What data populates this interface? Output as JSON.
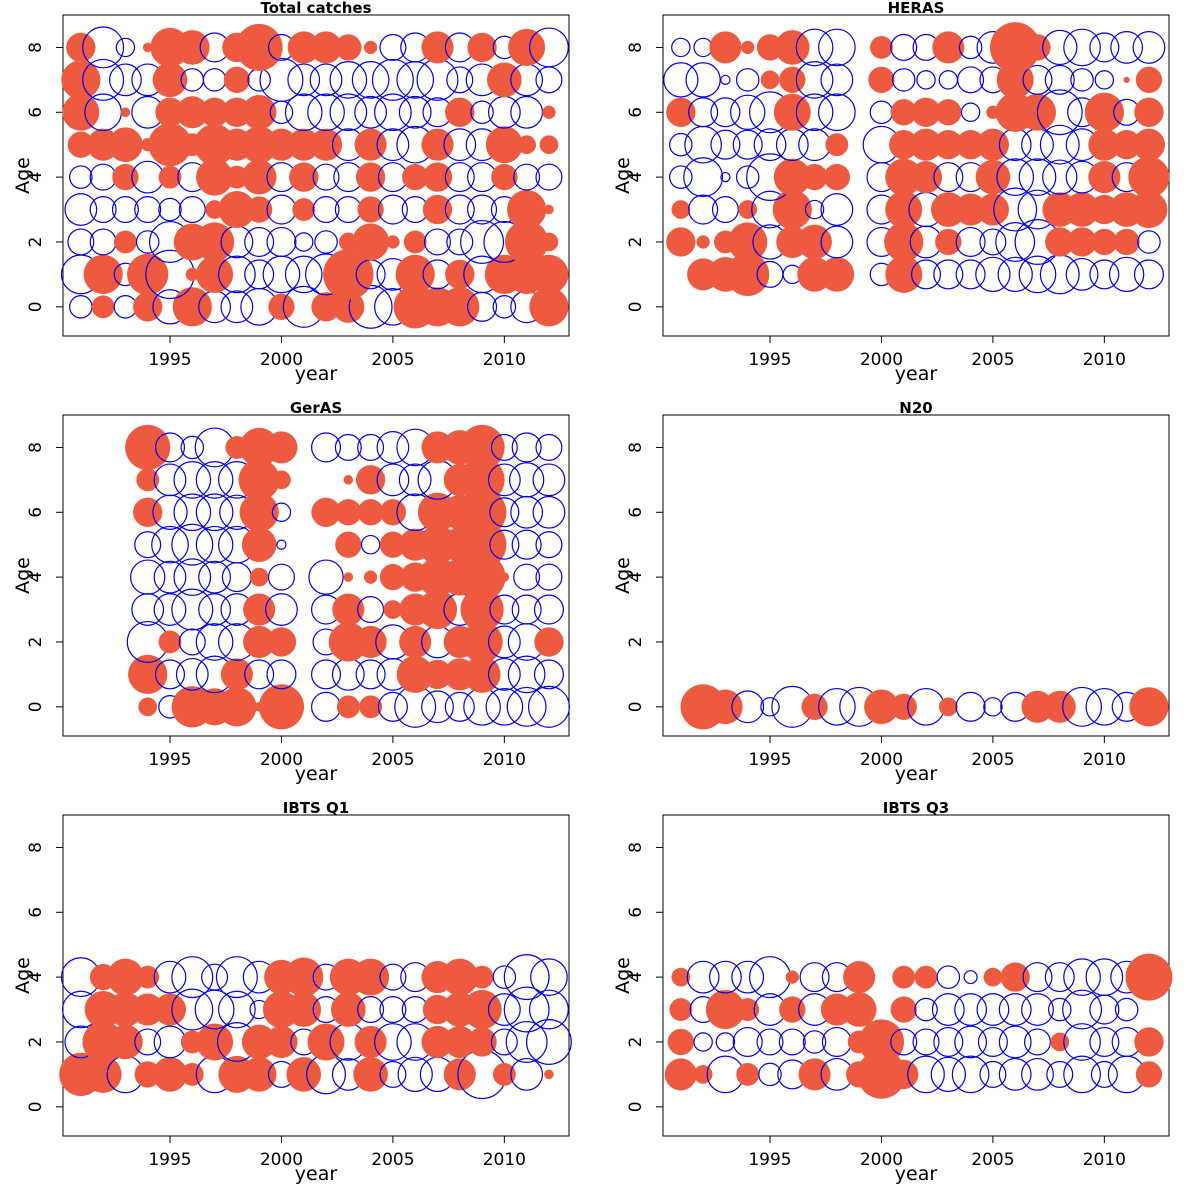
{
  "figure": {
    "colors": {
      "positive": "#EE5A3F",
      "negative": "#0000EE",
      "axis": "#000000"
    }
  },
  "chart_data": [
    {
      "type": "scatter",
      "subtype": "bubble",
      "title": "Total catches",
      "xlabel": "year",
      "ylabel": "Age",
      "xlim": [
        1990.2,
        2012.9
      ],
      "ylim": [
        -0.9,
        9.0
      ],
      "xticks": [
        1995,
        2000,
        2005,
        2010
      ],
      "yticks": [
        0,
        2,
        4,
        6,
        8
      ],
      "grid": false,
      "encoding": "residual bubble: filled red = positive, open blue = negative, area proportional to magnitude",
      "years": [
        1991,
        1992,
        1993,
        1994,
        1995,
        1996,
        1997,
        1998,
        1999,
        2000,
        2001,
        2002,
        2003,
        2004,
        2005,
        2006,
        2007,
        2008,
        2009,
        2010,
        2011,
        2012
      ],
      "residuals": {
        "0": [
          -0.3,
          0.3,
          -0.3,
          0.5,
          -0.7,
          0.9,
          -0.6,
          -0.6,
          -0.8,
          0.4,
          -1.0,
          0.5,
          0.6,
          -1.1,
          -0.8,
          1.1,
          0.9,
          0.9,
          -0.5,
          -0.3,
          -0.6,
          0.9
        ],
        "1": [
          -0.9,
          0.9,
          -0.3,
          1.0,
          -1.4,
          0.1,
          0.8,
          -0.8,
          -0.5,
          -0.8,
          -0.8,
          -1.0,
          1.5,
          -0.5,
          -0.6,
          0.9,
          -0.5,
          0.5,
          -0.8,
          0.9,
          0.9,
          0.9
        ],
        "2": [
          -0.4,
          -0.4,
          0.3,
          -0.3,
          -1.0,
          0.8,
          0.9,
          -0.6,
          -0.5,
          -0.5,
          -0.2,
          -0.3,
          0.2,
          0.8,
          0.1,
          0.3,
          -0.4,
          -0.4,
          -1.1,
          -1.0,
          1.1,
          0.2
        ],
        "3": [
          -0.6,
          -0.4,
          -0.4,
          -0.4,
          -0.3,
          -0.4,
          0.2,
          0.8,
          0.4,
          -0.5,
          0.3,
          -0.4,
          -0.4,
          0.4,
          -0.5,
          -0.4,
          0.5,
          -0.5,
          -0.5,
          -0.4,
          0.9,
          0.05
        ],
        "4": [
          -0.3,
          -0.4,
          0.4,
          -0.6,
          0.3,
          -0.5,
          0.8,
          0.3,
          0.7,
          -0.5,
          0.5,
          -0.4,
          -0.5,
          0.5,
          -0.5,
          0.4,
          0.5,
          -0.5,
          -0.5,
          0.4,
          -0.4,
          -0.4
        ],
        "5": [
          0.4,
          0.6,
          0.7,
          0.1,
          1.1,
          0.3,
          1.0,
          0.6,
          0.8,
          0.6,
          0.6,
          0.6,
          -0.6,
          0.6,
          -0.6,
          -0.8,
          0.6,
          -0.6,
          -0.6,
          0.8,
          0.2,
          0.2
        ],
        "6": [
          0.8,
          -0.8,
          0.05,
          -0.6,
          0.5,
          0.6,
          0.5,
          0.5,
          0.7,
          -0.3,
          -0.8,
          -0.8,
          -0.8,
          -0.6,
          -0.8,
          -0.6,
          -0.5,
          0.5,
          -0.3,
          -0.6,
          -0.6,
          0.1
        ],
        "7": [
          0.9,
          -1.0,
          -0.6,
          -0.6,
          0.7,
          -0.3,
          -0.3,
          0.4,
          -0.3,
          -1.1,
          -0.6,
          -0.6,
          -0.8,
          -0.8,
          -1.0,
          -0.8,
          -1.0,
          -0.4,
          -0.6,
          0.7,
          -0.6,
          -0.4
        ],
        "8": [
          0.5,
          -1.0,
          -0.2,
          0.05,
          0.9,
          0.7,
          -0.5,
          0.5,
          1.3,
          -0.4,
          0.6,
          0.6,
          0.4,
          0.1,
          -0.4,
          -0.5,
          0.6,
          -0.5,
          0.5,
          -0.3,
          0.8,
          -0.9
        ]
      }
    },
    {
      "type": "scatter",
      "subtype": "bubble",
      "title": "HERAS",
      "xlabel": "year",
      "ylabel": "Age",
      "xlim": [
        1990.2,
        2012.9
      ],
      "ylim": [
        -0.9,
        9.0
      ],
      "xticks": [
        1995,
        2000,
        2005,
        2010
      ],
      "yticks": [
        0,
        2,
        4,
        6,
        8
      ],
      "grid": false,
      "years": [
        1991,
        1992,
        1993,
        1994,
        1995,
        1996,
        1997,
        1998,
        1999,
        2000,
        2001,
        2002,
        2003,
        2004,
        2005,
        2006,
        2007,
        2008,
        2009,
        2010,
        2011,
        2012
      ],
      "residuals": {
        "1": [
          null,
          0.6,
          0.7,
          1.1,
          -0.4,
          -0.2,
          0.7,
          0.7,
          null,
          -0.3,
          0.8,
          -0.5,
          -0.5,
          -0.5,
          -0.7,
          -0.7,
          -0.8,
          -0.9,
          -0.6,
          -0.5,
          -0.7,
          -0.5
        ],
        "2": [
          0.5,
          0.1,
          0.3,
          0.9,
          -0.7,
          0.6,
          0.7,
          -0.6,
          null,
          -0.5,
          0.9,
          -0.6,
          0.4,
          -0.5,
          -0.4,
          -0.9,
          -1.2,
          0.5,
          0.5,
          0.4,
          0.4,
          -0.3
        ],
        "3": [
          0.2,
          -0.5,
          -0.4,
          0.2,
          -0.8,
          0.9,
          -0.2,
          -0.6,
          null,
          -0.5,
          0.8,
          -0.7,
          0.7,
          0.6,
          0.6,
          -1.1,
          -0.9,
          0.7,
          0.7,
          0.5,
          0.7,
          0.8
        ],
        "4": [
          -0.3,
          -0.9,
          -0.05,
          -0.3,
          -1.3,
          0.8,
          0.4,
          0.4,
          null,
          -0.5,
          0.8,
          0.6,
          -0.5,
          -0.5,
          0.7,
          -0.8,
          -0.8,
          -0.7,
          -0.6,
          0.6,
          -0.5,
          1.0
        ],
        "5": [
          -0.3,
          -0.8,
          -0.5,
          -0.5,
          -0.6,
          -0.6,
          -0.6,
          0.3,
          null,
          -0.8,
          0.5,
          0.6,
          0.5,
          0.5,
          0.6,
          -0.6,
          -0.6,
          -0.9,
          -0.6,
          0.6,
          0.5,
          0.6
        ],
        "6": [
          0.5,
          -0.5,
          -0.5,
          -0.7,
          -1.0,
          0.8,
          -0.8,
          -0.8,
          null,
          -0.3,
          0.4,
          0.5,
          0.4,
          -0.2,
          0.1,
          0.9,
          0.8,
          -1.2,
          -0.5,
          0.9,
          -0.4,
          0.5
        ],
        "7": [
          -0.7,
          -0.7,
          -0.05,
          -0.3,
          0.2,
          0.4,
          -0.8,
          -0.6,
          null,
          0.4,
          -0.3,
          -0.2,
          -0.2,
          -0.4,
          -0.4,
          0.8,
          -0.5,
          -0.5,
          -0.3,
          -0.2,
          0.02,
          0.4
        ],
        "8": [
          -0.2,
          -0.2,
          0.6,
          0.1,
          0.4,
          0.7,
          -0.8,
          -0.8,
          null,
          0.3,
          -0.4,
          -0.4,
          0.6,
          -0.3,
          -0.6,
          1.5,
          0.4,
          -0.7,
          -0.8,
          -0.5,
          -0.6,
          -0.6
        ]
      }
    },
    {
      "type": "scatter",
      "subtype": "bubble",
      "title": "GerAS",
      "xlabel": "year",
      "ylabel": "Age",
      "xlim": [
        1990.2,
        2012.9
      ],
      "ylim": [
        -0.9,
        9.0
      ],
      "xticks": [
        1995,
        2000,
        2005,
        2010
      ],
      "yticks": [
        0,
        2,
        4,
        6,
        8
      ],
      "grid": false,
      "years": [
        1994,
        1995,
        1996,
        1997,
        1998,
        1999,
        2000,
        2002,
        2003,
        2004,
        2005,
        2006,
        2007,
        2008,
        2009,
        2010,
        2011,
        2012
      ],
      "residuals": {
        "0": [
          0.2,
          -0.3,
          1.0,
          0.8,
          0.9,
          0.05,
          1.2,
          -0.5,
          0.3,
          0.3,
          -0.5,
          -1.0,
          -0.6,
          -0.5,
          -0.8,
          -0.8,
          -0.9,
          -1.0
        ],
        "1": [
          0.9,
          -0.5,
          -0.6,
          -0.8,
          0.6,
          -0.5,
          -0.5,
          -0.5,
          -0.6,
          -0.5,
          -0.6,
          0.8,
          0.5,
          0.6,
          0.8,
          -0.6,
          -0.8,
          -0.5
        ],
        "2": [
          -1.0,
          0.3,
          -0.4,
          -0.8,
          -0.8,
          0.6,
          0.5,
          -0.4,
          0.9,
          0.6,
          -0.7,
          0.6,
          -0.6,
          0.6,
          1.0,
          -0.6,
          -0.8,
          0.5
        ],
        "3": [
          -0.6,
          -0.6,
          -1.0,
          -0.6,
          -0.6,
          0.6,
          -0.6,
          -0.5,
          0.6,
          -0.4,
          0.2,
          0.6,
          0.9,
          -0.6,
          1.1,
          -0.5,
          -0.5,
          -0.5
        ],
        "4": [
          -0.7,
          -0.6,
          -0.8,
          -0.6,
          -0.5,
          0.2,
          -0.4,
          -0.7,
          0.05,
          0.1,
          0.4,
          0.5,
          0.9,
          0.8,
          1.3,
          0.05,
          -0.4,
          -0.4
        ],
        "5": [
          -0.4,
          -0.8,
          -1.0,
          -0.8,
          -0.8,
          0.7,
          -0.05,
          null,
          0.4,
          -0.2,
          0.4,
          0.6,
          0.9,
          0.7,
          1.4,
          -0.5,
          -0.5,
          -0.4
        ],
        "6": [
          0.5,
          -0.7,
          -0.8,
          -0.8,
          -0.7,
          0.9,
          -0.2,
          0.5,
          0.4,
          0.4,
          0.4,
          -0.8,
          0.9,
          0.7,
          1.4,
          -0.5,
          -0.6,
          -0.6
        ],
        "7": [
          0.3,
          -0.6,
          -0.8,
          -0.8,
          -0.8,
          1.0,
          0.2,
          null,
          0.05,
          0.5,
          -0.6,
          -0.6,
          -0.9,
          0.6,
          1.2,
          -0.6,
          -0.7,
          -0.6
        ],
        "8": [
          1.2,
          -0.5,
          -0.3,
          -0.9,
          0.3,
          0.9,
          0.6,
          -0.5,
          -0.4,
          -0.4,
          -0.6,
          -0.8,
          0.6,
          0.7,
          1.2,
          -0.4,
          -0.5,
          -0.4
        ]
      }
    },
    {
      "type": "scatter",
      "subtype": "bubble",
      "title": "N20",
      "xlabel": "year",
      "ylabel": "Age",
      "xlim": [
        1990.2,
        2012.9
      ],
      "ylim": [
        -0.9,
        9.0
      ],
      "xticks": [
        1995,
        2000,
        2005,
        2010
      ],
      "yticks": [
        0,
        2,
        4,
        6,
        8
      ],
      "grid": false,
      "years": [
        1992,
        1993,
        1994,
        1995,
        1996,
        1997,
        1998,
        1999,
        2000,
        2001,
        2002,
        2003,
        2004,
        2005,
        2006,
        2007,
        2008,
        2009,
        2010,
        2011,
        2012
      ],
      "residuals": {
        "0": [
          1.2,
          0.7,
          -0.6,
          -0.2,
          -1.0,
          0.4,
          -0.8,
          -0.9,
          0.7,
          0.4,
          -0.8,
          0.2,
          -0.5,
          -0.2,
          -0.5,
          0.6,
          0.6,
          -0.9,
          -0.8,
          -0.5,
          0.9
        ]
      }
    },
    {
      "type": "scatter",
      "subtype": "bubble",
      "title": "IBTS Q1",
      "xlabel": "year",
      "ylabel": "Age",
      "xlim": [
        1990.2,
        2012.9
      ],
      "ylim": [
        -0.9,
        9.0
      ],
      "xticks": [
        1995,
        2000,
        2005,
        2010
      ],
      "yticks": [
        0,
        2,
        4,
        6,
        8
      ],
      "grid": false,
      "years": [
        1991,
        1992,
        1993,
        1994,
        1995,
        1996,
        1997,
        1998,
        1999,
        2000,
        2001,
        2002,
        2003,
        2004,
        2005,
        2006,
        2007,
        2008,
        2009,
        2010,
        2011,
        2012
      ],
      "residuals": {
        "1": [
          1.1,
          0.8,
          -0.8,
          0.4,
          0.7,
          0.3,
          -0.8,
          0.8,
          0.7,
          -0.4,
          0.7,
          -0.9,
          -0.6,
          0.7,
          -0.4,
          -0.7,
          -0.7,
          0.6,
          -1.4,
          0.3,
          -0.6,
          0.05
        ],
        "2": [
          -0.6,
          1.0,
          0.7,
          -0.4,
          -0.6,
          0.3,
          0.8,
          -0.9,
          0.7,
          0.6,
          -0.4,
          0.8,
          -0.8,
          0.6,
          -0.8,
          -0.8,
          0.6,
          0.6,
          0.5,
          -0.4,
          -1.0,
          -1.2
        ],
        "3": [
          -0.8,
          0.8,
          0.7,
          0.6,
          0.6,
          -1.0,
          -0.9,
          -0.8,
          -0.2,
          0.8,
          0.7,
          -0.4,
          0.7,
          -0.4,
          -0.4,
          -0.4,
          0.5,
          0.7,
          0.9,
          -0.6,
          -1.2,
          -0.9
        ],
        "4": [
          -0.9,
          0.4,
          0.8,
          0.3,
          -0.6,
          -1.0,
          -0.4,
          -1.0,
          -0.6,
          0.7,
          0.9,
          -0.4,
          0.8,
          0.8,
          -0.4,
          -0.5,
          0.6,
          0.8,
          0.3,
          -0.3,
          -1.2,
          -0.8
        ]
      }
    },
    {
      "type": "scatter",
      "subtype": "bubble",
      "title": "IBTS Q3",
      "xlabel": "year",
      "ylabel": "Age",
      "xlim": [
        1990.2,
        2012.9
      ],
      "ylim": [
        -0.9,
        9.0
      ],
      "xticks": [
        1995,
        2000,
        2005,
        2010
      ],
      "yticks": [
        0,
        2,
        4,
        6,
        8
      ],
      "grid": false,
      "years": [
        1991,
        1992,
        1993,
        1994,
        1995,
        1996,
        1997,
        1998,
        1999,
        2000,
        2001,
        2002,
        2003,
        2004,
        2005,
        2006,
        2007,
        2008,
        2009,
        2010,
        2011,
        2012
      ],
      "residuals": {
        "1": [
          0.6,
          0.2,
          -0.8,
          0.3,
          -0.3,
          -0.5,
          0.6,
          -0.6,
          0.4,
          1.4,
          0.5,
          -0.8,
          -0.7,
          -0.8,
          -0.4,
          -0.6,
          -0.6,
          -0.4,
          -0.8,
          -0.4,
          -0.8,
          0.4
        ],
        "2": [
          0.4,
          -0.2,
          -0.2,
          -0.5,
          -0.4,
          -0.4,
          -0.3,
          -0.5,
          0.3,
          1.2,
          -0.4,
          -0.4,
          -0.5,
          -0.6,
          -0.5,
          -0.6,
          -0.4,
          0.2,
          -0.8,
          -0.5,
          -0.5,
          0.5
        ],
        "3": [
          0.3,
          -0.4,
          0.9,
          0.3,
          -0.6,
          0.4,
          -0.6,
          0.6,
          0.7,
          null,
          0.4,
          -0.3,
          -0.6,
          -0.6,
          -0.6,
          -0.6,
          -0.6,
          -0.3,
          -0.9,
          -0.5,
          -0.3,
          null
        ],
        "4": [
          0.2,
          -0.6,
          -0.6,
          -0.6,
          -1.0,
          0.1,
          -0.5,
          -0.5,
          0.6,
          null,
          0.3,
          0.3,
          -0.3,
          -0.1,
          0.2,
          0.5,
          -0.5,
          -0.5,
          -0.8,
          -0.8,
          -0.6,
          1.3
        ]
      }
    }
  ]
}
